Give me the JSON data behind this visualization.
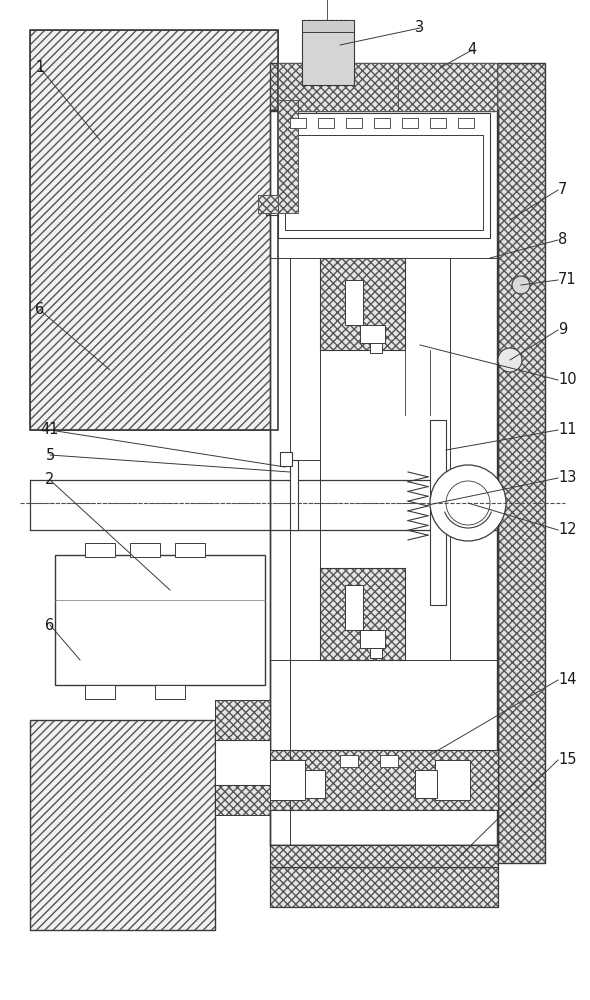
{
  "figsize": [
    5.9,
    10.0
  ],
  "dpi": 100,
  "bg": "#ffffff",
  "lc": "#3a3a3a",
  "hatch_diag": "////",
  "hatch_cross": "xxxx",
  "hatch_fine": "///",
  "fc_hatch": "#f5f5f5",
  "fc_cross": "#ebebeb",
  "ec_hatch": "#555555",
  "lw_main": 1.0,
  "lw_thin": 0.6
}
